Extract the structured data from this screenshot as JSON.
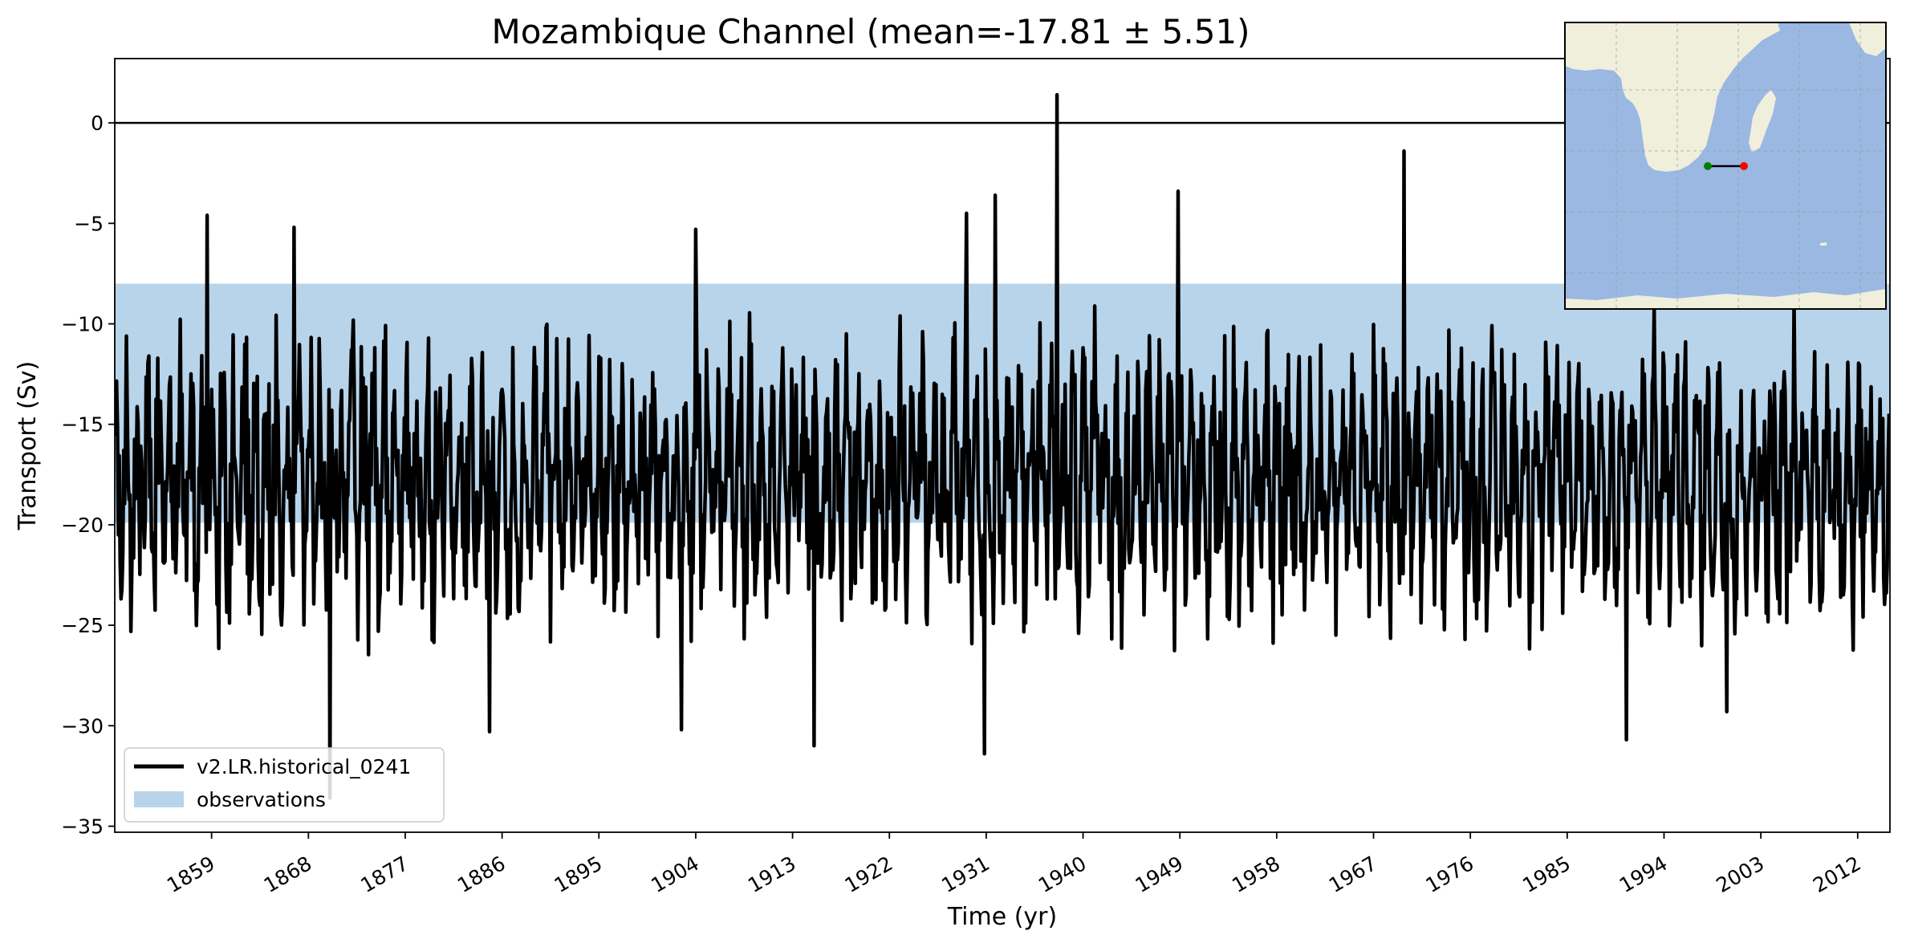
{
  "chart_data": {
    "type": "line",
    "title": "Mozambique Channel (mean=-17.81 ± 5.51)",
    "xlabel": "Time (yr)",
    "ylabel": "Transport (Sv)",
    "xlim": [
      1850,
      2015
    ],
    "ylim": [
      -35.3,
      3.2
    ],
    "xticks": [
      1859,
      1868,
      1877,
      1886,
      1895,
      1904,
      1913,
      1922,
      1931,
      1940,
      1949,
      1958,
      1967,
      1976,
      1985,
      1994,
      2003,
      2012
    ],
    "yticks": [
      0,
      -5,
      -10,
      -15,
      -20,
      -25,
      -30,
      -35
    ],
    "reference_line": {
      "y": 0,
      "color": "#000000"
    },
    "observation_band": {
      "label": "observations",
      "y_low": -19.9,
      "y_high": -8.0,
      "color": "#b8d4ea"
    },
    "series": [
      {
        "name": "v2.LR.historical_0241",
        "color": "#000000",
        "sampling": "monthly",
        "start_year": 1850,
        "end_year": 2015,
        "mean": -17.81,
        "std": 5.51,
        "notable_points": [
          {
            "x": 1858.6,
            "y": -4.6
          },
          {
            "x": 1866.7,
            "y": -5.2
          },
          {
            "x": 1870.0,
            "y": -33.6
          },
          {
            "x": 1884.8,
            "y": -30.3
          },
          {
            "x": 1902.7,
            "y": -30.2
          },
          {
            "x": 1904.0,
            "y": -5.3
          },
          {
            "x": 1915.0,
            "y": -31.0
          },
          {
            "x": 1929.2,
            "y": -4.5
          },
          {
            "x": 1930.8,
            "y": -31.4
          },
          {
            "x": 1931.8,
            "y": -3.6
          },
          {
            "x": 1937.6,
            "y": 1.4
          },
          {
            "x": 1948.8,
            "y": -3.4
          },
          {
            "x": 1969.8,
            "y": -1.4
          },
          {
            "x": 1990.5,
            "y": -30.7
          },
          {
            "x": 1999.8,
            "y": -29.3
          }
        ]
      }
    ],
    "legend": {
      "position": "lower-left",
      "entries": [
        "v2.LR.historical_0241",
        "observations"
      ]
    },
    "grid": false,
    "inset_map": {
      "position": "top-right",
      "description": "Southern Africa and southwest Indian Ocean",
      "land_color": "#efefdc",
      "ocean_color": "#9ab8e2",
      "section_start_color": "#008000",
      "section_end_color": "#ff0000",
      "section_line_color": "#000000"
    }
  }
}
